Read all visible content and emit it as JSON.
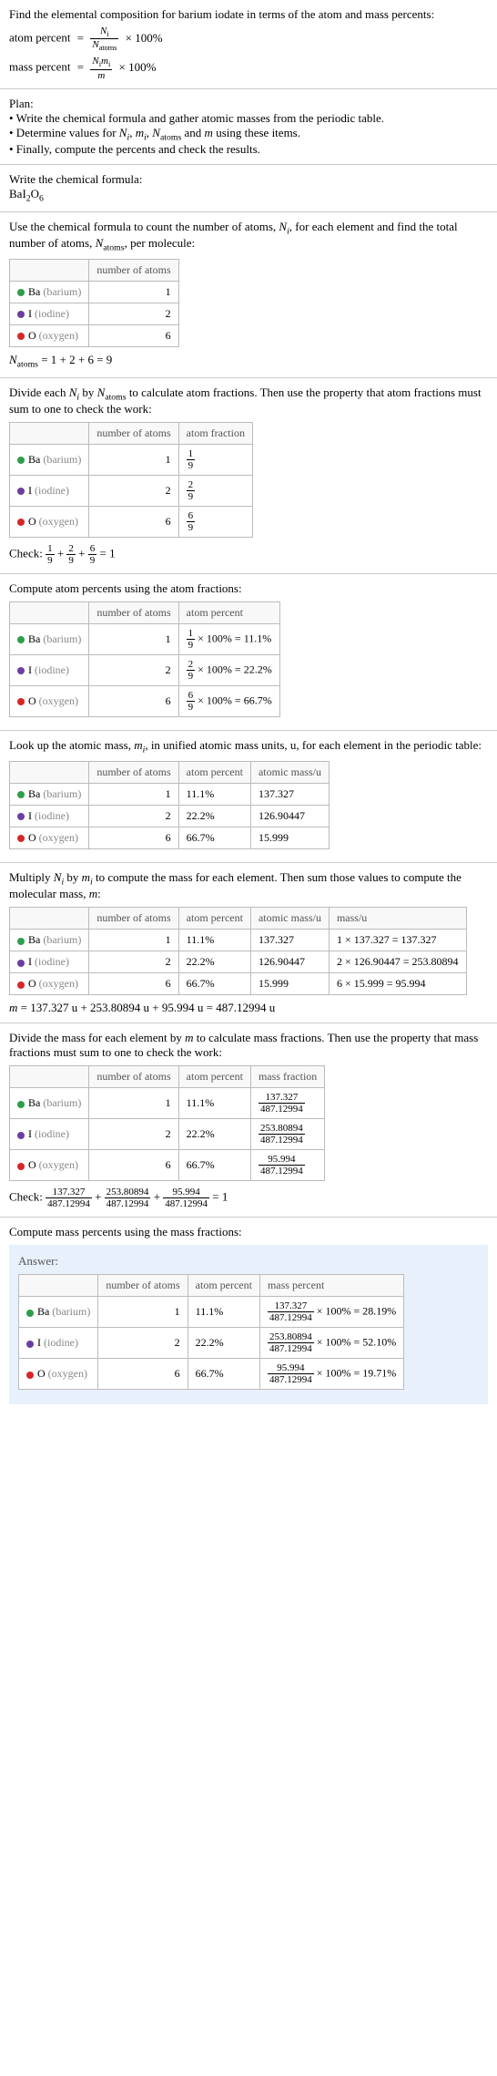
{
  "intro": {
    "line1": "Find the elemental composition for barium iodate in terms of the atom and mass percents:",
    "atom_percent_label": "atom percent",
    "mass_percent_label": "mass percent",
    "eq": "=",
    "times100": "× 100%",
    "frac_ap_num": "N",
    "frac_ap_num_sub": "i",
    "frac_ap_den": "N",
    "frac_ap_den_sub": "atoms",
    "frac_mp_num_a": "N",
    "frac_mp_num_a_sub": "i",
    "frac_mp_num_b": "m",
    "frac_mp_num_b_sub": "i",
    "frac_mp_den": "m"
  },
  "plan": {
    "header": "Plan:",
    "b1a": "• Write the chemical formula and gather atomic masses from the periodic table.",
    "b2a": "• Determine values for ",
    "b2_Ni": "N",
    "b2_i": "i",
    "b2_c1": ", ",
    "b2_mi": "m",
    "b2_mi_i": "i",
    "b2_c2": ", ",
    "b2_Na": "N",
    "b2_atoms": "atoms",
    "b2b": " and ",
    "b2_m": "m",
    "b2c": " using these items.",
    "b3": "• Finally, compute the percents and check the results."
  },
  "formula_sec": {
    "line1": "Write the chemical formula:",
    "f": "BaI",
    "f2": "2",
    "fO": "O",
    "f6": "6"
  },
  "count_sec": {
    "line1a": "Use the chemical formula to count the number of atoms, ",
    "N": "N",
    "i": "i",
    "line1b": ", for each element and find the total number of atoms, ",
    "Na": "N",
    "atoms": "atoms",
    "line1c": ", per molecule:",
    "hdr_atoms": "number of atoms",
    "rows": [
      {
        "color": "#2e9e4a",
        "sym": "Ba",
        "name": "(barium)",
        "n": 1
      },
      {
        "color": "#6b3fa0",
        "sym": "I",
        "name": "(iodine)",
        "n": 2
      },
      {
        "color": "#d62728",
        "sym": "O",
        "name": "(oxygen)",
        "n": 6
      }
    ],
    "sum_lhs_a": "N",
    "sum_lhs_sub": "atoms",
    "sum_rhs": " = 1 + 2 + 6 = 9"
  },
  "atomfrac_sec": {
    "line1a": "Divide each ",
    "N1": "N",
    "i1": "i",
    "line1b": " by ",
    "N2": "N",
    "atoms2": "atoms",
    "line1c": " to calculate atom fractions. Then use the property that atom fractions must sum to one to check the work:",
    "hdr_atoms": "number of atoms",
    "hdr_frac": "atom fraction",
    "rows": [
      {
        "color": "#2e9e4a",
        "sym": "Ba",
        "name": "(barium)",
        "n": 1,
        "fn": "1",
        "fd": "9"
      },
      {
        "color": "#6b3fa0",
        "sym": "I",
        "name": "(iodine)",
        "n": 2,
        "fn": "2",
        "fd": "9"
      },
      {
        "color": "#d62728",
        "sym": "O",
        "name": "(oxygen)",
        "n": 6,
        "fn": "6",
        "fd": "9"
      }
    ],
    "check_label": "Check: ",
    "c_f1n": "1",
    "c_f1d": "9",
    "plus": " + ",
    "c_f2n": "2",
    "c_f2d": "9",
    "c_f3n": "6",
    "c_f3d": "9",
    "eq1": " = 1"
  },
  "atompct_sec": {
    "line1": "Compute atom percents using the atom fractions:",
    "hdr_atoms": "number of atoms",
    "hdr_pct": "atom percent",
    "rows": [
      {
        "color": "#2e9e4a",
        "sym": "Ba",
        "name": "(barium)",
        "n": 1,
        "fn": "1",
        "fd": "9",
        "pct": "× 100% = 11.1%"
      },
      {
        "color": "#6b3fa0",
        "sym": "I",
        "name": "(iodine)",
        "n": 2,
        "fn": "2",
        "fd": "9",
        "pct": "× 100% = 22.2%"
      },
      {
        "color": "#d62728",
        "sym": "O",
        "name": "(oxygen)",
        "n": 6,
        "fn": "6",
        "fd": "9",
        "pct": "× 100% = 66.7%"
      }
    ]
  },
  "mass_lookup": {
    "line1a": "Look up the atomic mass, ",
    "m": "m",
    "i": "i",
    "line1b": ", in unified atomic mass units, u, for each element in the periodic table:",
    "hdr_atoms": "number of atoms",
    "hdr_pct": "atom percent",
    "hdr_mass": "atomic mass/u",
    "rows": [
      {
        "color": "#2e9e4a",
        "sym": "Ba",
        "name": "(barium)",
        "n": 1,
        "pct": "11.1%",
        "mass": "137.327"
      },
      {
        "color": "#6b3fa0",
        "sym": "I",
        "name": "(iodine)",
        "n": 2,
        "pct": "22.2%",
        "mass": "126.90447"
      },
      {
        "color": "#d62728",
        "sym": "O",
        "name": "(oxygen)",
        "n": 6,
        "pct": "66.7%",
        "mass": "15.999"
      }
    ]
  },
  "mass_compute": {
    "line1a": "Multiply ",
    "N": "N",
    "i": "i",
    "line1b": " by ",
    "m": "m",
    "mi": "i",
    "line1c": " to compute the mass for each element. Then sum those values to compute the molecular mass, ",
    "mm": "m",
    "line1d": ":",
    "hdr_atoms": "number of atoms",
    "hdr_pct": "atom percent",
    "hdr_mass": "atomic mass/u",
    "hdr_massu": "mass/u",
    "rows": [
      {
        "color": "#2e9e4a",
        "sym": "Ba",
        "name": "(barium)",
        "n": 1,
        "pct": "11.1%",
        "mass": "137.327",
        "mu": "1 × 137.327 = 137.327"
      },
      {
        "color": "#6b3fa0",
        "sym": "I",
        "name": "(iodine)",
        "n": 2,
        "pct": "22.2%",
        "mass": "126.90447",
        "mu": "2 × 126.90447 = 253.80894"
      },
      {
        "color": "#d62728",
        "sym": "O",
        "name": "(oxygen)",
        "n": 6,
        "pct": "66.7%",
        "mass": "15.999",
        "mu": "6 × 15.999 = 95.994"
      }
    ],
    "sum_m": "m",
    "sum_rhs": " = 137.327 u + 253.80894 u + 95.994 u = 487.12994 u"
  },
  "massfrac_sec": {
    "line1a": "Divide the mass for each element by ",
    "m": "m",
    "line1b": " to calculate mass fractions. Then use the property that mass fractions must sum to one to check the work:",
    "hdr_atoms": "number of atoms",
    "hdr_pct": "atom percent",
    "hdr_mfrac": "mass fraction",
    "rows": [
      {
        "color": "#2e9e4a",
        "sym": "Ba",
        "name": "(barium)",
        "n": 1,
        "pct": "11.1%",
        "fn": "137.327",
        "fd": "487.12994"
      },
      {
        "color": "#6b3fa0",
        "sym": "I",
        "name": "(iodine)",
        "n": 2,
        "pct": "22.2%",
        "fn": "253.80894",
        "fd": "487.12994"
      },
      {
        "color": "#d62728",
        "sym": "O",
        "name": "(oxygen)",
        "n": 6,
        "pct": "66.7%",
        "fn": "95.994",
        "fd": "487.12994"
      }
    ],
    "check_label": "Check: ",
    "c_f1n": "137.327",
    "c_f1d": "487.12994",
    "plus": " + ",
    "c_f2n": "253.80894",
    "c_f2d": "487.12994",
    "c_f3n": "95.994",
    "c_f3d": "487.12994",
    "eq1": " = 1"
  },
  "final_sec": {
    "line1": "Compute mass percents using the mass fractions:",
    "answer_label": "Answer:",
    "hdr_atoms": "number of atoms",
    "hdr_pct": "atom percent",
    "hdr_mpct": "mass percent",
    "rows": [
      {
        "color": "#2e9e4a",
        "sym": "Ba",
        "name": "(barium)",
        "n": 1,
        "pct": "11.1%",
        "fn": "137.327",
        "fd": "487.12994",
        "res": "× 100% = 28.19%"
      },
      {
        "color": "#6b3fa0",
        "sym": "I",
        "name": "(iodine)",
        "n": 2,
        "pct": "22.2%",
        "fn": "253.80894",
        "fd": "487.12994",
        "res": "× 100% = 52.10%"
      },
      {
        "color": "#d62728",
        "sym": "O",
        "name": "(oxygen)",
        "n": 6,
        "pct": "66.7%",
        "fn": "95.994",
        "fd": "487.12994",
        "res": "× 100% = 19.71%"
      }
    ]
  },
  "colors": {
    "answer_bg": "#e8f0fb",
    "border": "#bbb"
  }
}
